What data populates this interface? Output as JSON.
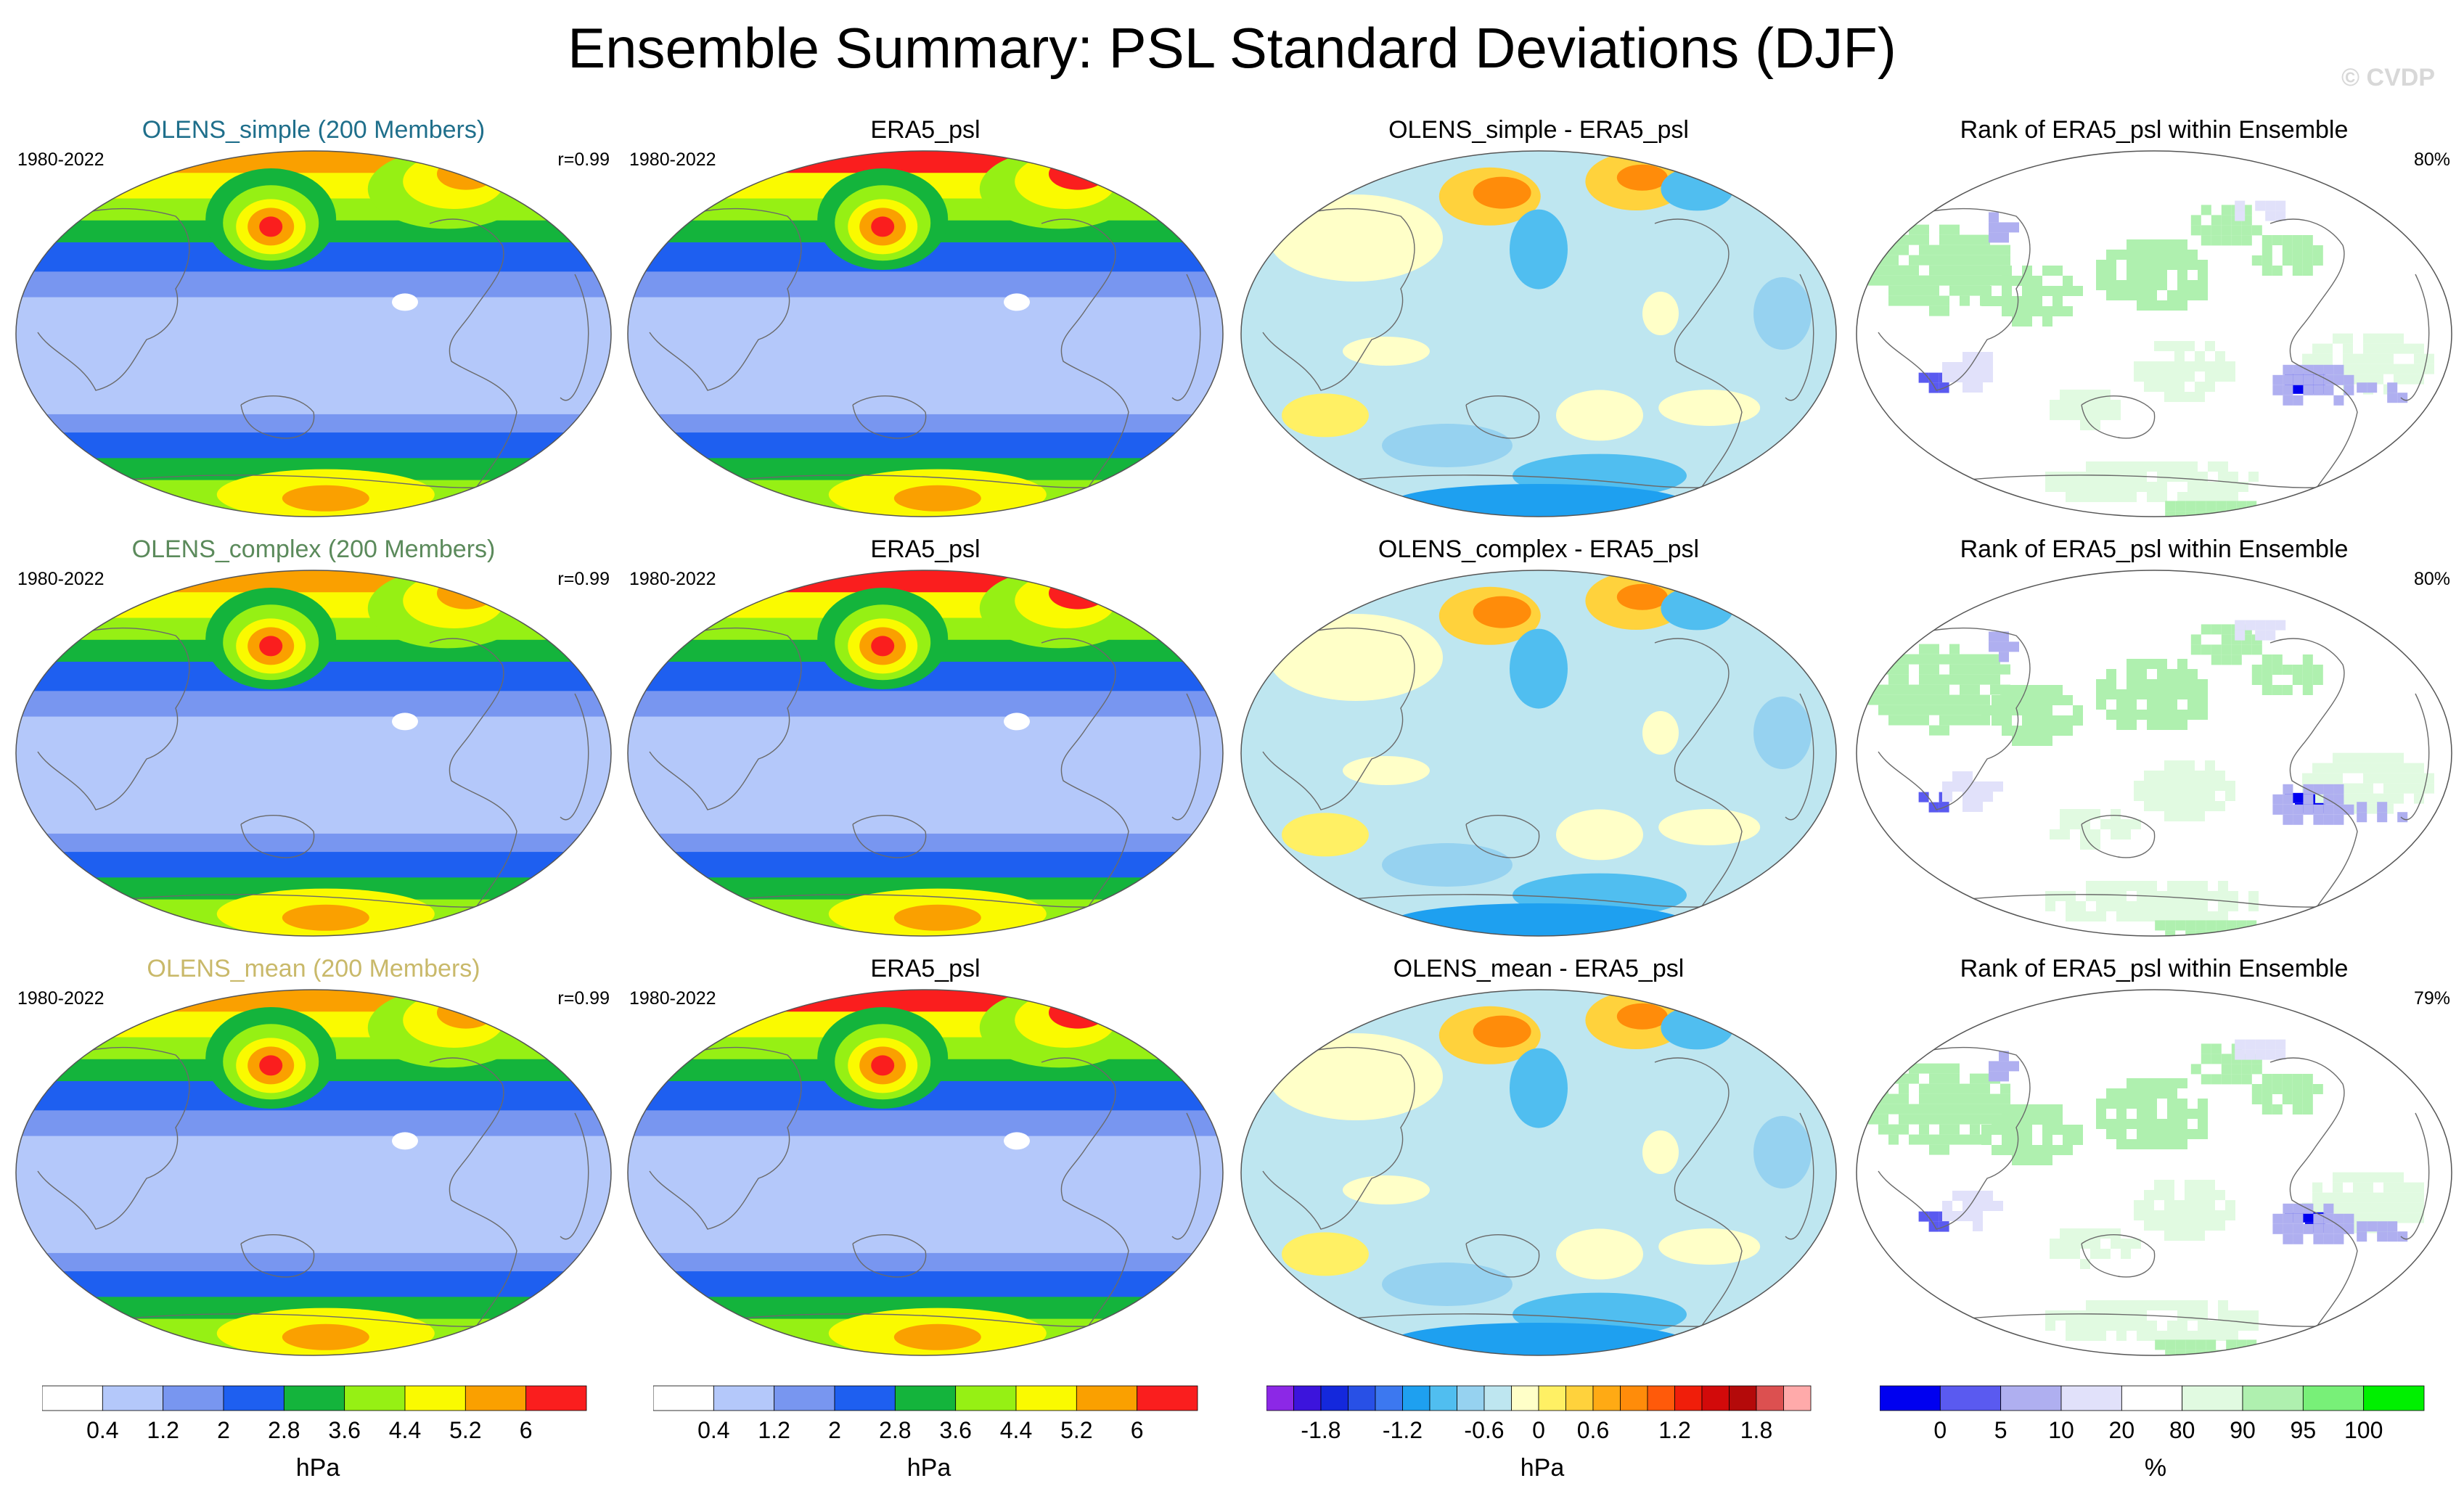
{
  "title": "Ensemble Summary: PSL Standard Deviations (DJF)",
  "watermark": "© CVDP",
  "rows": [
    {
      "model_label": "OLENS_simple (200 Members)",
      "model_color": "#1f6f8b",
      "period": "1980-2022",
      "corr": "r=0.99",
      "obs_label": "ERA5_psl",
      "obs_period": "1980-2022",
      "diff_label": "OLENS_simple - ERA5_psl",
      "rank_label": "Rank of ERA5_psl within Ensemble",
      "rank_pct": "80%"
    },
    {
      "model_label": "OLENS_complex (200 Members)",
      "model_color": "#5b8a5b",
      "period": "1980-2022",
      "corr": "r=0.99",
      "obs_label": "ERA5_psl",
      "obs_period": "1980-2022",
      "diff_label": "OLENS_complex - ERA5_psl",
      "rank_label": "Rank of ERA5_psl within Ensemble",
      "rank_pct": "80%"
    },
    {
      "model_label": "OLENS_mean (200 Members)",
      "model_color": "#c9b96a",
      "period": "1980-2022",
      "corr": "r=0.99",
      "obs_label": "ERA5_psl",
      "obs_period": "1980-2022",
      "diff_label": "OLENS_mean - ERA5_psl",
      "rank_label": "Rank of ERA5_psl within Ensemble",
      "rank_pct": "79%"
    }
  ],
  "colorbars": [
    {
      "unit": "hPa",
      "colors": [
        "#ffffff",
        "#b4c8fa",
        "#7896f0",
        "#1e5ff0",
        "#14b43c",
        "#96f014",
        "#fafa00",
        "#faa000",
        "#fa1e1e"
      ],
      "tick_labels": [
        "0.4",
        "1.2",
        "2",
        "2.8",
        "3.6",
        "4.4",
        "5.2",
        "6"
      ]
    },
    {
      "unit": "hPa",
      "colors": [
        "#ffffff",
        "#b4c8fa",
        "#7896f0",
        "#1e5ff0",
        "#14b43c",
        "#96f014",
        "#fafa00",
        "#faa000",
        "#fa1e1e"
      ],
      "tick_labels": [
        "0.4",
        "1.2",
        "2",
        "2.8",
        "3.6",
        "4.4",
        "5.2",
        "6"
      ]
    },
    {
      "unit": "hPa",
      "colors": [
        "#8c28e6",
        "#3c14dc",
        "#1428dc",
        "#2850e6",
        "#3c78f0",
        "#1ea0f0",
        "#50bef0",
        "#96d2f0",
        "#bee6f0",
        "#ffffc8",
        "#fff064",
        "#ffd23c",
        "#ffaa14",
        "#ff8c0a",
        "#ff5a0a",
        "#f01e0a",
        "#d20a0a",
        "#b40a0a",
        "#dc5050",
        "#ffaaaa"
      ],
      "tick_labels": [
        "-1.8",
        "-1.2",
        "-0.6",
        "0",
        "0.6",
        "1.2",
        "1.8"
      ],
      "tick_boundaries": [
        2,
        5,
        8,
        10,
        12,
        15,
        18
      ]
    },
    {
      "unit": "%",
      "colors": [
        "#0000f0",
        "#5a5af0",
        "#afaff0",
        "#e1e1fa",
        "#ffffff",
        "#e1fae1",
        "#aff0af",
        "#78f078",
        "#00f000"
      ],
      "tick_labels": [
        "0",
        "5",
        "10",
        "20",
        "80",
        "90",
        "95",
        "100"
      ]
    }
  ],
  "chart_data": [
    {
      "type": "heatmap",
      "projection": "robinson",
      "description_of_variable": "PSL standard deviation DJF",
      "panels": [
        {
          "label": "OLENS_simple (200 Members)",
          "value_range": [
            0.4,
            6.8
          ]
        },
        {
          "label": "ERA5_psl",
          "value_range": [
            0.4,
            6.8
          ]
        },
        {
          "label": "OLENS_simple - ERA5_psl",
          "value_range": [
            -1.8,
            1.8
          ]
        },
        {
          "label": "Rank of ERA5_psl within Ensemble",
          "value_range": [
            0,
            100
          ]
        },
        {
          "label": "OLENS_complex (200 Members)",
          "value_range": [
            0.4,
            6.8
          ]
        },
        {
          "label": "ERA5_psl",
          "value_range": [
            0.4,
            6.8
          ]
        },
        {
          "label": "OLENS_complex - ERA5_psl",
          "value_range": [
            -1.8,
            1.8
          ]
        },
        {
          "label": "Rank of ERA5_psl within Ensemble",
          "value_range": [
            0,
            100
          ]
        },
        {
          "label": "OLENS_mean (200 Members)",
          "value_range": [
            0.4,
            6.8
          ]
        },
        {
          "label": "ERA5_psl",
          "value_range": [
            0.4,
            6.8
          ]
        },
        {
          "label": "OLENS_mean - ERA5_psl",
          "value_range": [
            -1.8,
            1.8
          ]
        },
        {
          "label": "Rank of ERA5_psl within Ensemble",
          "value_range": [
            0,
            100
          ]
        }
      ]
    }
  ]
}
